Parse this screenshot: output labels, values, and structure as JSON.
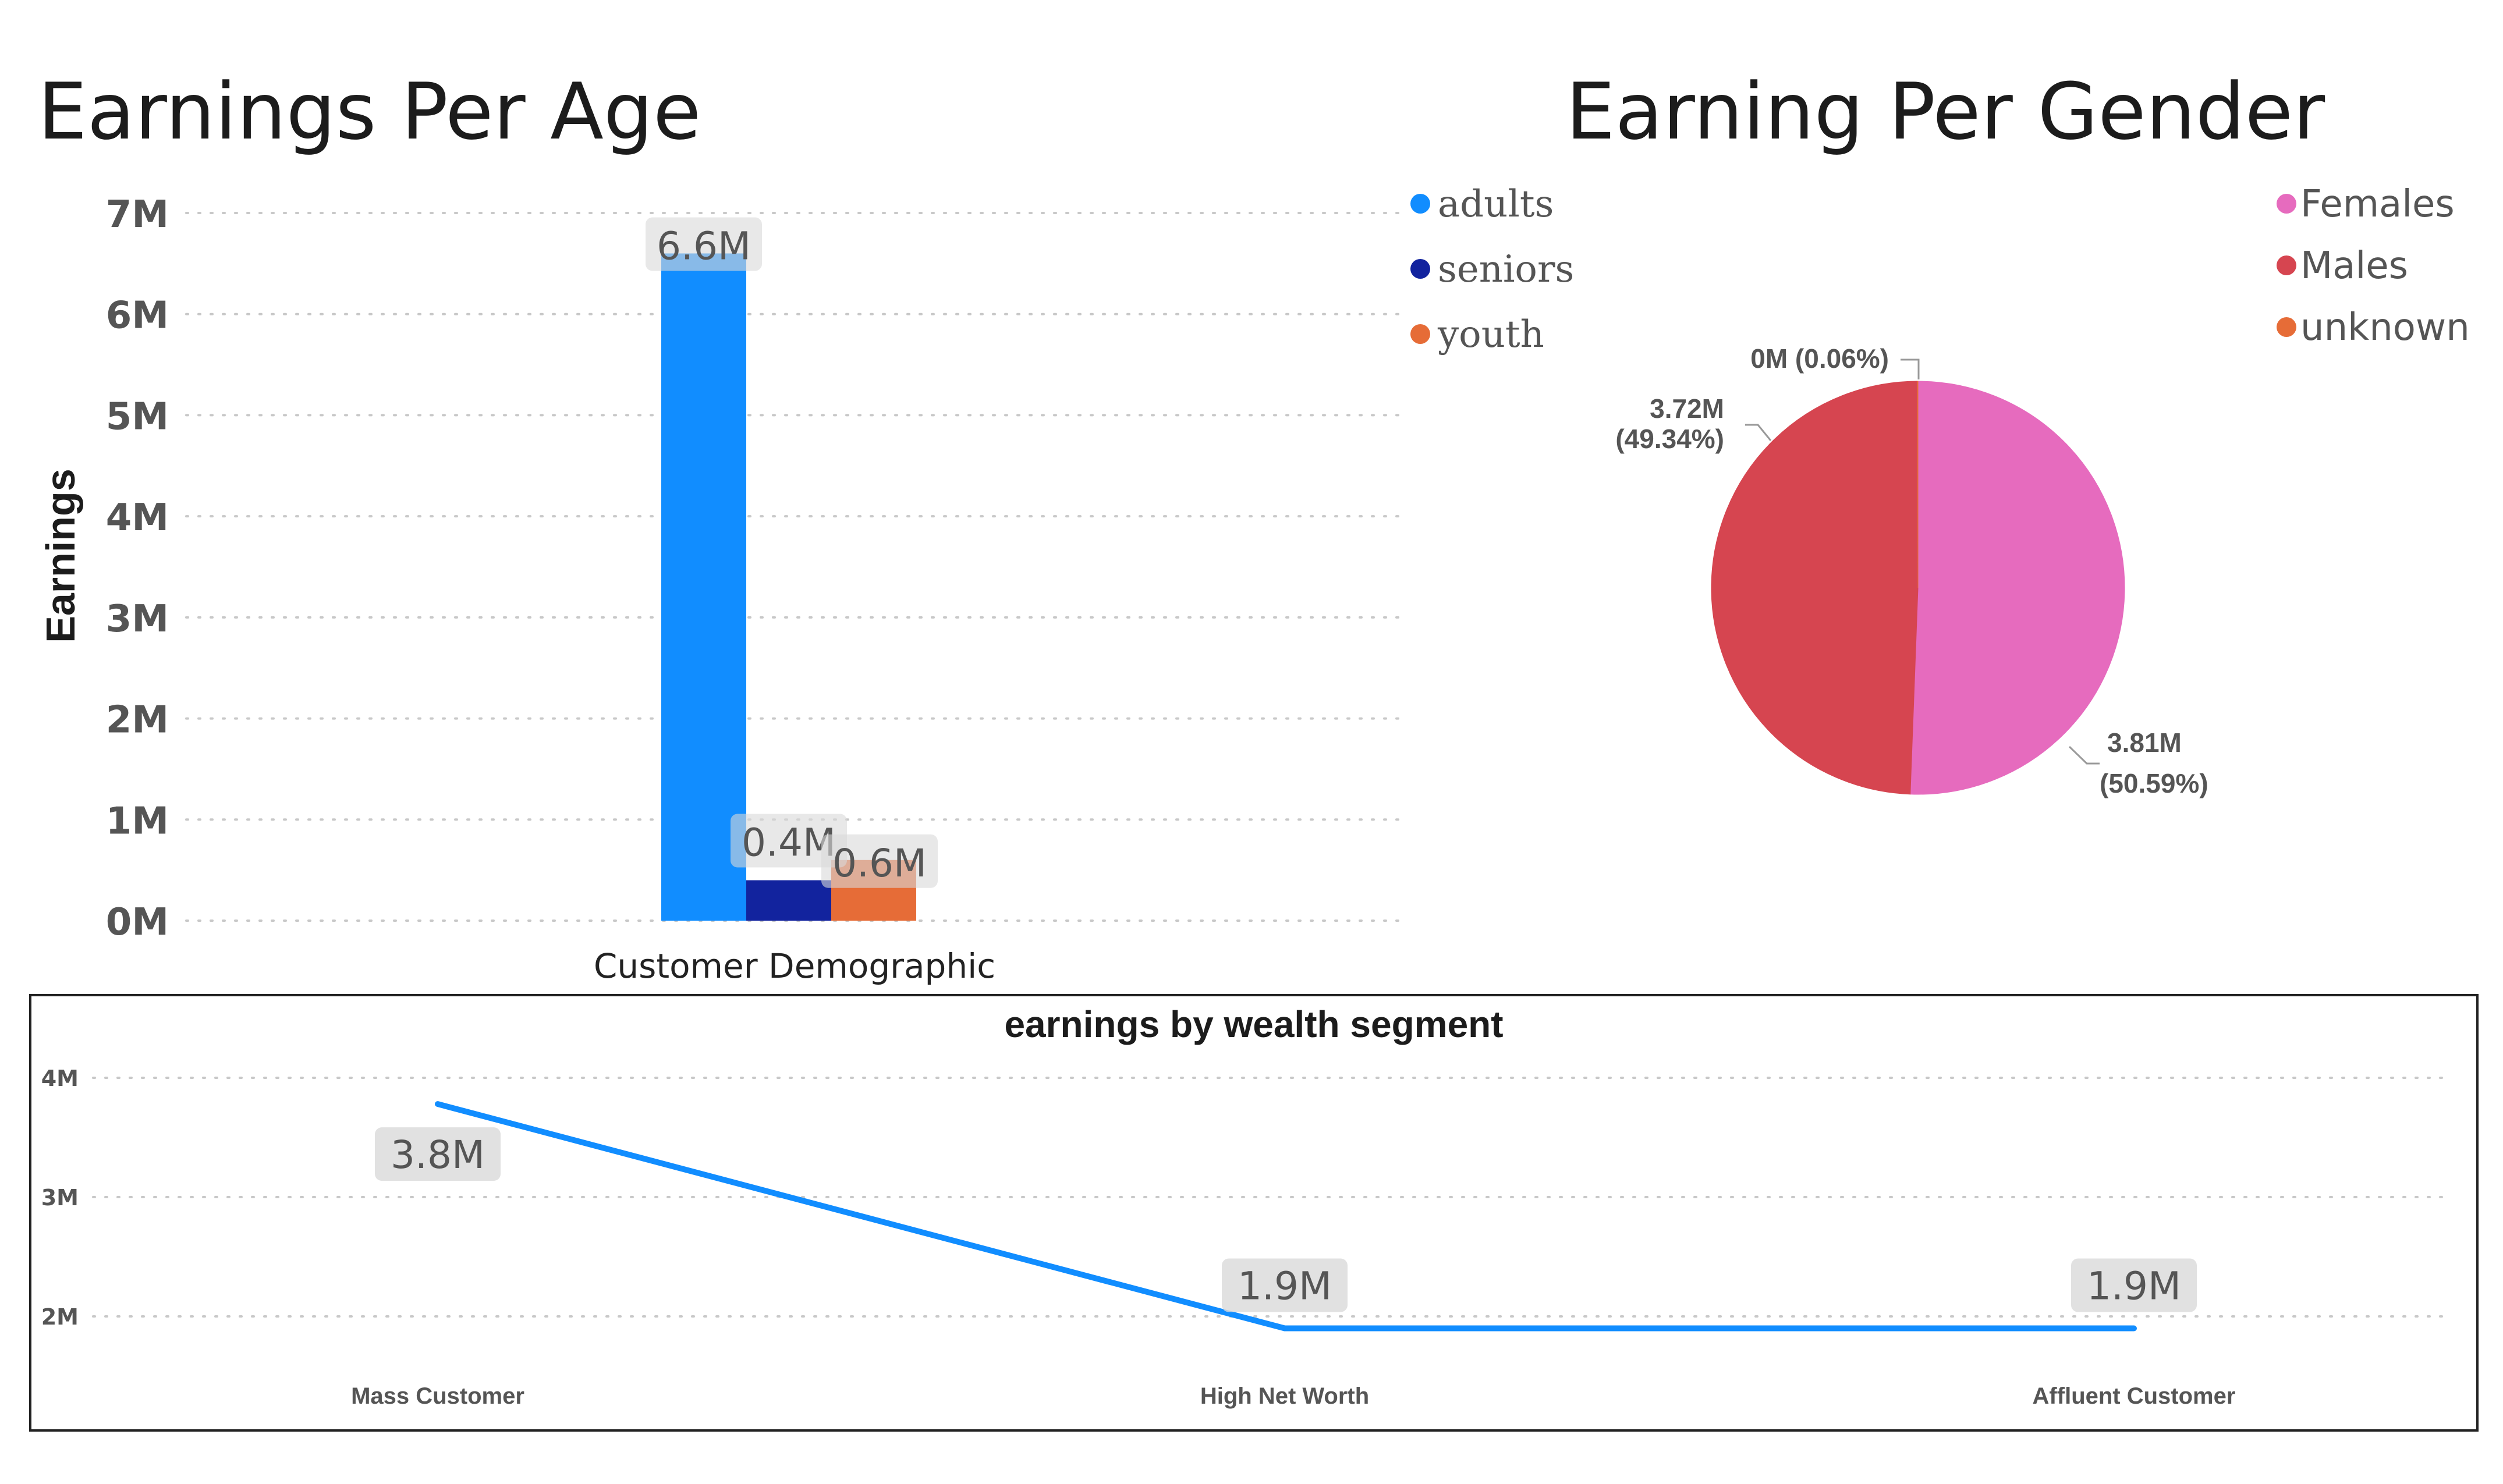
{
  "chart_data": [
    {
      "type": "bar",
      "title": "Earnings Per Age",
      "xlabel": "Customer Demographic",
      "ylabel": "Earnings",
      "ylim": [
        0,
        7000000
      ],
      "yticks": [
        0,
        1000000,
        2000000,
        3000000,
        4000000,
        5000000,
        6000000,
        7000000
      ],
      "ytick_labels": [
        "0M",
        "1M",
        "2M",
        "3M",
        "4M",
        "5M",
        "6M",
        "7M"
      ],
      "grid": true,
      "legend_position": "right",
      "series": [
        {
          "name": "adults",
          "value": 6600000,
          "label": "6.6M",
          "color": "#118DFF"
        },
        {
          "name": "seniors",
          "value": 400000,
          "label": "0.4M",
          "color": "#12239E"
        },
        {
          "name": "youth",
          "value": 600000,
          "label": "0.6M",
          "color": "#E66C37"
        }
      ]
    },
    {
      "type": "pie",
      "title": "Earning Per Gender",
      "legend_position": "top-right",
      "slices": [
        {
          "name": "Females",
          "value": 3.81,
          "percent": 50.59,
          "label_value": "3.81M",
          "label_percent": "(50.59%)",
          "color": "#E66BBE"
        },
        {
          "name": "Males",
          "value": 3.72,
          "percent": 49.34,
          "label_value": "3.72M",
          "label_percent": "(49.34%)",
          "color": "#D64550"
        },
        {
          "name": "unknown",
          "value": 0.0,
          "percent": 0.06,
          "label_value": "0M",
          "label_percent": "(0.06%)",
          "color": "#E66C37"
        }
      ]
    },
    {
      "type": "line",
      "title": "earnings by wealth segment",
      "categories": [
        "Mass Customer",
        "High Net Worth",
        "Affluent Customer"
      ],
      "values": [
        3780000,
        1900000,
        1900000
      ],
      "value_labels": [
        "3.8M",
        "1.9M",
        "1.9M"
      ],
      "ylim": [
        1500000,
        4300000
      ],
      "yticks": [
        2000000,
        3000000,
        4000000
      ],
      "ytick_labels": [
        "2M",
        "3M",
        "4M"
      ],
      "grid": true,
      "color": "#118DFF"
    }
  ]
}
